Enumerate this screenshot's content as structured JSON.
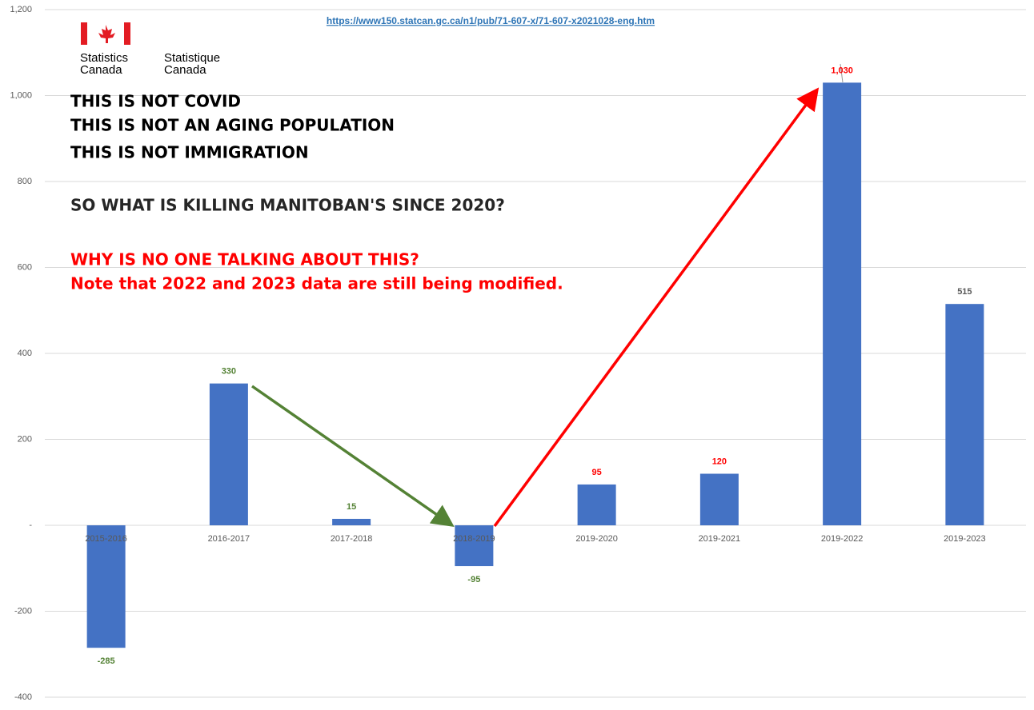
{
  "chart_data": {
    "type": "bar",
    "source": "https://www150.statcan.gc.ca/n1/pub/71-607-x/71-607-x2021028-eng.htm",
    "categories": [
      "2015-2016",
      "2016-2017",
      "2017-2018",
      "2018-2019",
      "2019-2020",
      "2019-2021",
      "2019-2022",
      "2019-2023"
    ],
    "values": [
      -285,
      330,
      15,
      -95,
      95,
      120,
      1030,
      515
    ],
    "value_labels": [
      "-285",
      "330",
      "15",
      "-95",
      "95",
      "120",
      "1,030",
      "515"
    ],
    "label_colors": [
      "#548235",
      "#548235",
      "#548235",
      "#548235",
      "#ff0000",
      "#ff0000",
      "#ff0000",
      "#595959"
    ],
    "color": "#4472c4",
    "ylim": [
      -400,
      1200
    ],
    "yticks": [
      -400,
      -200,
      {
        "value": 0,
        "label": "-"
      },
      200,
      400,
      600,
      800,
      {
        "value": 1000,
        "label": "1,000"
      },
      {
        "value": 1200,
        "label": "1,200"
      }
    ],
    "grid": true,
    "annotations": [
      {
        "text": "THIS IS NOT COVID",
        "color": "#000000"
      },
      {
        "text": "THIS IS NOT AN AGING POPULATION",
        "color": "#000000"
      },
      {
        "text": "THIS IS NOT IMMIGRATION",
        "color": "#000000"
      },
      {
        "text": "SO WHAT IS KILLING MANITOBAN'S SINCE 2020?",
        "color": "#262626"
      },
      {
        "text": "WHY IS NO ONE TALKING ABOUT THIS?",
        "color": "#ff0000"
      },
      {
        "text": "Note that 2022 and 2023 data are still being modified.",
        "color": "#ff0000"
      }
    ]
  },
  "logo": {
    "en": [
      "Statistics",
      "Canada"
    ],
    "fr": [
      "Statistique",
      "Canada"
    ]
  }
}
